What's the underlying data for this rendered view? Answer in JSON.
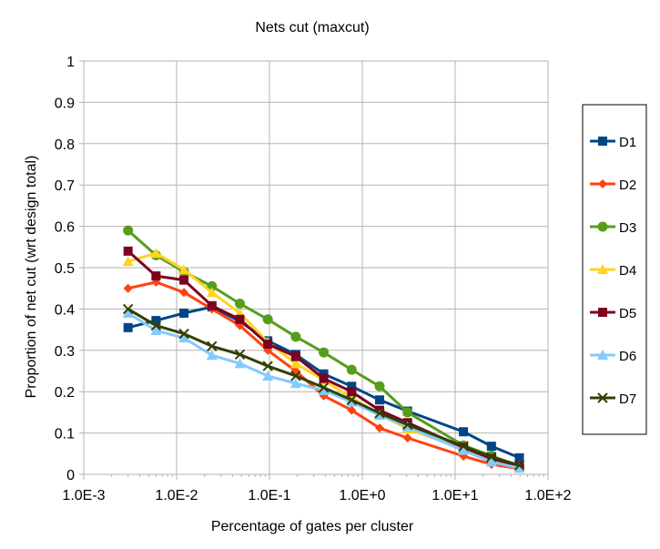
{
  "chart_data": {
    "type": "line",
    "title": "Nets cut (maxcut)",
    "xlabel": "Percentage of gates per cluster",
    "ylabel": "Proportion of net cut (wrt design total)",
    "x_scale": "log",
    "xlim": [
      0.001,
      100
    ],
    "ylim": [
      0,
      1
    ],
    "x_ticks": [
      "1.0E-3",
      "1.0E-2",
      "1.0E-1",
      "1.0E+0",
      "1.0E+1",
      "1.0E+2"
    ],
    "y_ticks": [
      "0",
      "0.1",
      "0.2",
      "0.3",
      "0.4",
      "0.5",
      "0.6",
      "0.7",
      "0.8",
      "0.9",
      "1"
    ],
    "grid": "both",
    "legend_position": "right",
    "x": [
      0.003,
      0.006,
      0.012,
      0.024,
      0.048,
      0.096,
      0.192,
      0.384,
      0.768,
      1.536,
      3.072,
      12.288,
      24.576,
      49.152
    ],
    "series": [
      {
        "name": "D1",
        "color": "#004586",
        "marker": "square",
        "values": [
          0.355,
          0.372,
          0.39,
          0.405,
          0.37,
          0.323,
          0.29,
          0.243,
          0.213,
          0.18,
          0.153,
          0.103,
          0.068,
          0.04
        ]
      },
      {
        "name": "D2",
        "color": "#ff420e",
        "marker": "diamond",
        "values": [
          0.45,
          0.465,
          0.44,
          0.4,
          0.36,
          0.3,
          0.25,
          0.19,
          0.155,
          0.112,
          0.088,
          0.044,
          0.024,
          0.014
        ]
      },
      {
        "name": "D3",
        "color": "#579d1c",
        "marker": "circle",
        "values": [
          0.59,
          0.53,
          0.49,
          0.455,
          0.413,
          0.375,
          0.333,
          0.295,
          0.253,
          0.213,
          0.15,
          0.07,
          0.045,
          0.02
        ]
      },
      {
        "name": "D4",
        "color": "#ffd320",
        "marker": "triangle",
        "values": [
          0.515,
          0.535,
          0.495,
          0.44,
          0.39,
          0.32,
          0.268,
          0.228,
          0.185,
          0.145,
          0.11,
          0.062,
          0.035,
          0.017
        ]
      },
      {
        "name": "D5",
        "color": "#7e0021",
        "marker": "square",
        "values": [
          0.54,
          0.48,
          0.47,
          0.408,
          0.375,
          0.315,
          0.285,
          0.232,
          0.2,
          0.155,
          0.125,
          0.065,
          0.038,
          0.02
        ]
      },
      {
        "name": "D6",
        "color": "#83caff",
        "marker": "triangle",
        "values": [
          0.39,
          0.348,
          0.33,
          0.288,
          0.268,
          0.238,
          0.22,
          0.203,
          0.175,
          0.143,
          0.115,
          0.058,
          0.03,
          0.015
        ]
      },
      {
        "name": "D7",
        "color": "#314004",
        "marker": "x",
        "values": [
          0.4,
          0.36,
          0.34,
          0.31,
          0.29,
          0.262,
          0.238,
          0.21,
          0.18,
          0.148,
          0.12,
          0.068,
          0.042,
          0.022
        ]
      }
    ]
  }
}
